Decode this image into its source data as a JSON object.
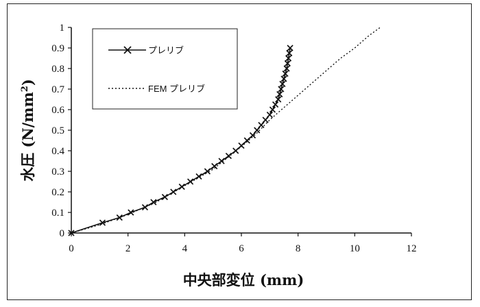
{
  "chart_data": {
    "type": "line",
    "title": "",
    "xlabel": "中央部変位 (mm)",
    "ylabel_main": "水圧 (N/mm",
    "ylabel_sup": "2",
    "ylabel_close": ")",
    "xlim": [
      0,
      12
    ],
    "ylim": [
      0,
      1
    ],
    "xticks": [
      "0",
      "2",
      "4",
      "6",
      "8",
      "10",
      "12"
    ],
    "yticks": [
      "0",
      "0.1",
      "0.2",
      "0.3",
      "0.4",
      "0.5",
      "0.6",
      "0.7",
      "0.8",
      "0.9",
      "1"
    ],
    "legend_position": "top-left",
    "grid": false,
    "series": [
      {
        "name": "プレリブ",
        "style": "solid-x-markers",
        "color": "#111111",
        "x": [
          0,
          1.1,
          1.7,
          2.1,
          2.6,
          2.9,
          3.3,
          3.6,
          3.9,
          4.2,
          4.5,
          4.8,
          5.05,
          5.3,
          5.55,
          5.8,
          6.0,
          6.2,
          6.4,
          6.55,
          6.7,
          6.85,
          7.0,
          7.1,
          7.2,
          7.3,
          7.35,
          7.4,
          7.45,
          7.5,
          7.55,
          7.6,
          7.63,
          7.66,
          7.69,
          7.72
        ],
        "y": [
          0,
          0.05,
          0.075,
          0.1,
          0.125,
          0.15,
          0.175,
          0.2,
          0.225,
          0.25,
          0.275,
          0.3,
          0.325,
          0.35,
          0.375,
          0.4,
          0.425,
          0.45,
          0.475,
          0.5,
          0.525,
          0.55,
          0.575,
          0.6,
          0.625,
          0.65,
          0.675,
          0.7,
          0.725,
          0.75,
          0.775,
          0.8,
          0.825,
          0.85,
          0.875,
          0.9
        ]
      },
      {
        "name": "FEM プレリブ",
        "style": "dotted",
        "color": "#111111",
        "x": [
          0,
          1,
          2,
          3,
          4,
          5,
          6,
          6.5,
          7,
          7.5,
          8,
          8.5,
          9,
          9.5,
          10,
          10.5,
          10.9
        ],
        "y": [
          0,
          0.04,
          0.09,
          0.15,
          0.23,
          0.31,
          0.42,
          0.48,
          0.55,
          0.61,
          0.67,
          0.73,
          0.79,
          0.85,
          0.9,
          0.96,
          1.0
        ]
      }
    ]
  }
}
